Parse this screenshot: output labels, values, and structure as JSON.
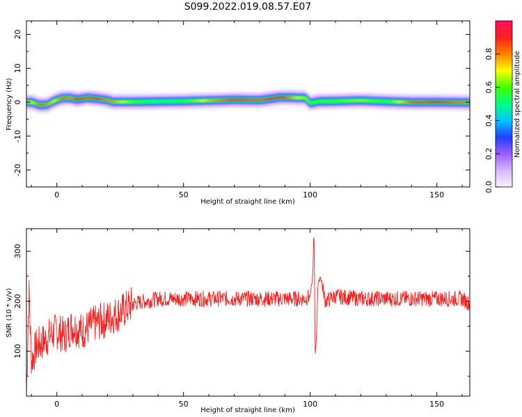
{
  "figure": {
    "title": "S099.2022.019.08.57.E07"
  },
  "chart_data": [
    {
      "type": "heatmap",
      "title": "",
      "xlabel": "Height of straight line (km)",
      "ylabel": "Frequency (Hz)",
      "xlim": [
        -12,
        163
      ],
      "ylim": [
        -25,
        24
      ],
      "xticks": [
        0,
        50,
        100,
        150
      ],
      "yticks": [
        20,
        10,
        0,
        -10,
        -20
      ],
      "colorbar": {
        "label": "Normalized spectral amplitude",
        "range": [
          0,
          1
        ],
        "ticks": [
          0.0,
          0.2,
          0.4,
          0.6,
          0.8
        ],
        "colormap": [
          "#f8f0ff",
          "#d8b8ff",
          "#9a5cff",
          "#2040ff",
          "#00c8ff",
          "#00ff80",
          "#40ff00",
          "#ffff00",
          "#ff8000",
          "#ff2020",
          "#ff1060"
        ]
      },
      "ridge": {
        "x": [
          -12,
          -10,
          -7,
          -4,
          -1,
          2,
          5,
          8,
          12,
          16,
          20,
          22,
          30,
          40,
          50,
          60,
          70,
          80,
          84,
          88,
          92,
          95,
          98,
          100,
          103,
          110,
          120,
          130,
          140,
          150,
          163
        ],
        "freq": [
          0,
          0,
          -0.8,
          -0.8,
          0.4,
          1.2,
          1.3,
          0.8,
          1.3,
          1.0,
          0.6,
          0.1,
          0.1,
          0.2,
          0.3,
          0.5,
          0.7,
          0.6,
          1.0,
          1.4,
          1.4,
          1.3,
          1.3,
          -0.3,
          0.2,
          0.3,
          0.5,
          0.2,
          0.0,
          0.0,
          -0.1
        ],
        "amplitude": [
          0.75,
          0.7,
          0.85,
          0.8,
          0.7,
          0.85,
          0.8,
          0.9,
          0.85,
          0.9,
          0.8,
          0.8,
          0.6,
          0.5,
          0.55,
          0.75,
          0.9,
          0.85,
          0.9,
          0.95,
          0.8,
          0.7,
          0.65,
          0.6,
          0.55,
          0.6,
          0.65,
          0.55,
          0.85,
          0.9,
          0.8
        ]
      }
    },
    {
      "type": "line",
      "title": "",
      "xlabel": "Height of straight line (km)",
      "ylabel": "SNR (10 * v/v)",
      "xlim": [
        -12,
        163
      ],
      "ylim": [
        10,
        345
      ],
      "xticks": [
        0,
        50,
        100,
        150
      ],
      "yticks": [
        100,
        200,
        300
      ],
      "color": "#ee2222",
      "series": [
        {
          "x": [
            -12,
            -11,
            -10,
            -8,
            -5,
            -2,
            0,
            3,
            6,
            10,
            15,
            18,
            22,
            26,
            30,
            35,
            40,
            50,
            60,
            70,
            80,
            90,
            98,
            100,
            101,
            101.5,
            102,
            102.5,
            103,
            104,
            106,
            110,
            120,
            130,
            140,
            150,
            160,
            163
          ],
          "y": [
            20,
            220,
            80,
            110,
            120,
            135,
            140,
            130,
            150,
            140,
            155,
            160,
            170,
            180,
            195,
            200,
            205,
            205,
            205,
            205,
            205,
            205,
            205,
            210,
            250,
            345,
            95,
            130,
            230,
            250,
            200,
            210,
            205,
            205,
            205,
            205,
            205,
            195
          ]
        }
      ]
    }
  ]
}
